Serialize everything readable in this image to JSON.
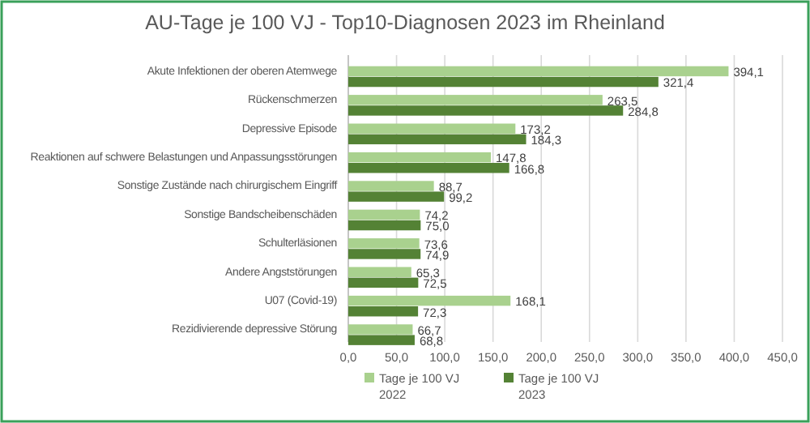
{
  "chart_data": {
    "type": "bar",
    "orientation": "horizontal",
    "title": "AU-Tage je 100 VJ - Top10-Diagnosen 2023 im Rheinland",
    "categories": [
      "Akute Infektionen der oberen Atemwege",
      "Rückenschmerzen",
      "Depressive Episode",
      "Reaktionen auf schwere Belastungen und Anpassungsstörungen",
      "Sonstige Zustände nach chirurgischem Eingriff",
      "Sonstige Bandscheibenschäden",
      "Schulterläsionen",
      "Andere Angststörungen",
      "U07 (Covid-19)",
      "Rezidivierende depressive Störung"
    ],
    "series": [
      {
        "name": "Tage je 100 VJ 2022",
        "color": "#a9d18e",
        "values": [
          394.1,
          263.5,
          173.2,
          147.8,
          88.7,
          74.2,
          73.6,
          65.3,
          168.1,
          66.7
        ],
        "value_labels": [
          "394,1",
          "263,5",
          "173,2",
          "147,8",
          "88,7",
          "74,2",
          "73,6",
          "65,3",
          "168,1",
          "66,7"
        ]
      },
      {
        "name": "Tage je 100 VJ 2023",
        "color": "#548235",
        "values": [
          321.4,
          284.8,
          184.3,
          166.8,
          99.2,
          75.0,
          74.9,
          72.5,
          72.3,
          68.8
        ],
        "value_labels": [
          "321,4",
          "284,8",
          "184,3",
          "166,8",
          "99,2",
          "75,0",
          "74,9",
          "72,5",
          "72,3",
          "68,8"
        ]
      }
    ],
    "xlim": [
      0,
      450
    ],
    "xticks": [
      {
        "value": 0,
        "label": "0,0"
      },
      {
        "value": 50,
        "label": "50,0"
      },
      {
        "value": 100,
        "label": "100,0"
      },
      {
        "value": 150,
        "label": "150,0"
      },
      {
        "value": 200,
        "label": "200,0"
      },
      {
        "value": 250,
        "label": "250,0"
      },
      {
        "value": 300,
        "label": "300,0"
      },
      {
        "value": 350,
        "label": "350,0"
      },
      {
        "value": 400,
        "label": "400,0"
      },
      {
        "value": 450,
        "label": "450,0"
      }
    ],
    "grid": "x",
    "legend": "bottom"
  }
}
